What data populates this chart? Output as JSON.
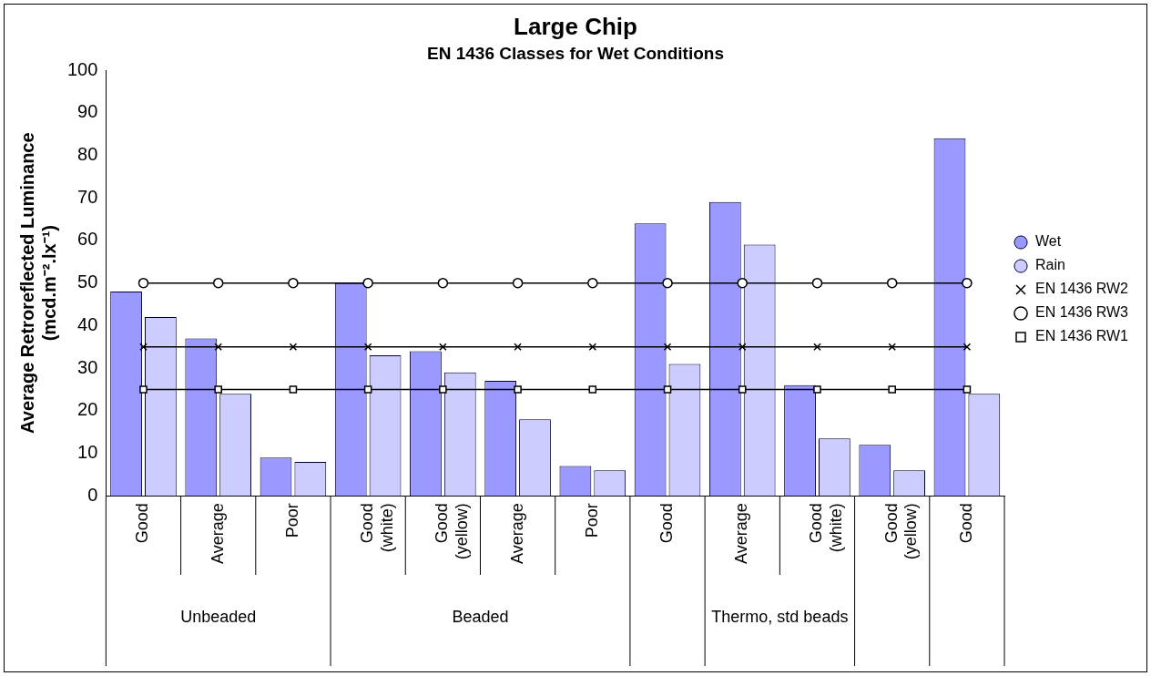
{
  "chart_data": {
    "type": "bar",
    "title": "Large Chip",
    "subtitle": "EN 1436 Classes for Wet Conditions",
    "ylabel": "Average Retroreflected Luminance (mcd.m⁻².lx⁻¹)",
    "categories": [
      "Good",
      "Average",
      "Poor",
      "Good (white)",
      "Good (yellow)",
      "Average",
      "Poor",
      "Good",
      "Average",
      "Good (white)",
      "Good (yellow)",
      "Good"
    ],
    "series": [
      {
        "name": "Wet",
        "color": "#9999ff",
        "values": [
          48,
          37,
          9,
          50,
          34,
          27,
          7,
          64,
          69,
          26,
          12,
          84
        ]
      },
      {
        "name": "Rain",
        "color": "#ccccff",
        "values": [
          42,
          24,
          8,
          33,
          29,
          18,
          6,
          31,
          59,
          13.5,
          6,
          24
        ]
      },
      {
        "name": "EN 1436 RW2",
        "type": "line",
        "color": "#000000",
        "marker": "cross",
        "values": [
          35,
          35,
          35,
          35,
          35,
          35,
          35,
          35,
          35,
          35,
          35,
          35
        ]
      },
      {
        "name": "EN 1436 RW3",
        "type": "line",
        "color": "#000000",
        "marker": "circle",
        "values": [
          50,
          50,
          50,
          50,
          50,
          50,
          50,
          50,
          50,
          50,
          50,
          50
        ]
      },
      {
        "name": "EN 1436 RW1",
        "type": "line",
        "color": "#000000",
        "marker": "square",
        "values": [
          25,
          25,
          25,
          25,
          25,
          25,
          25,
          25,
          25,
          25,
          25,
          25
        ]
      }
    ],
    "annotations": [
      "Unbeaded",
      "Beaded",
      "Thermo, std beads"
    ],
    "ylim": [
      0,
      100
    ],
    "yticks": [
      0,
      10,
      20,
      30,
      40,
      50,
      60,
      70,
      80,
      90,
      100
    ],
    "grid": false,
    "legend": "right"
  }
}
